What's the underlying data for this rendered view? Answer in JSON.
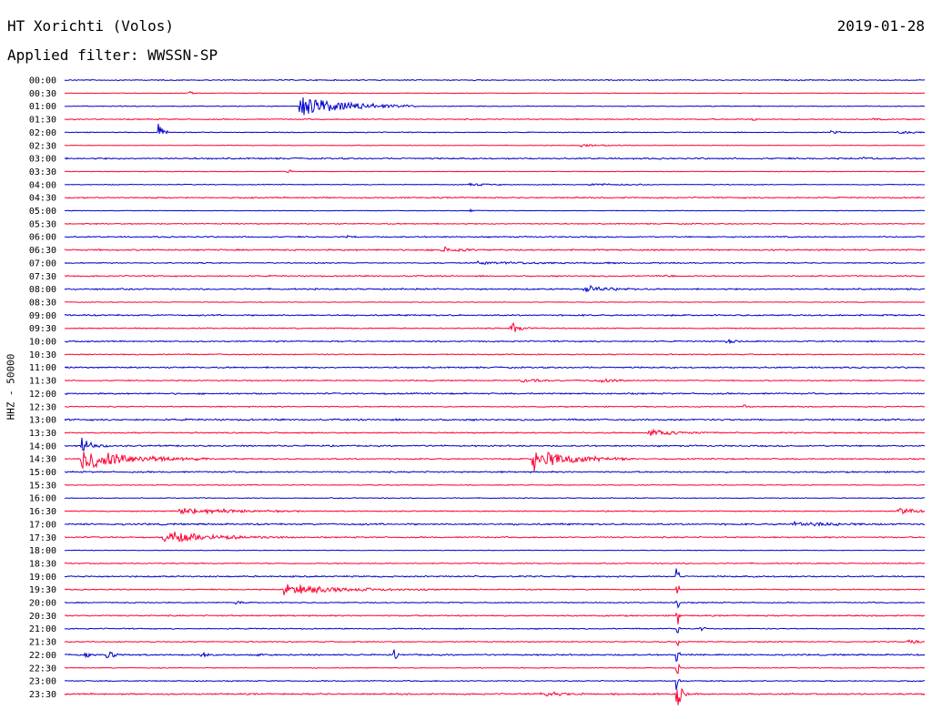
{
  "header": {
    "title": "HT Xorichti (Volos)",
    "date": "2019-01-28",
    "filter": "Applied filter: WWSSN-SP"
  },
  "chart_data": {
    "type": "line",
    "title": "HT Xorichti (Volos)",
    "ylabel": "HHZ - 50000",
    "colors": [
      "#0000cc",
      "#ff0033"
    ],
    "rows": [
      {
        "label": "00:00",
        "noise": 0.5,
        "events": []
      },
      {
        "label": "00:30",
        "noise": 0.3,
        "events": [
          {
            "t": 0.145,
            "amp": 3,
            "dur": 0.003
          }
        ]
      },
      {
        "label": "01:00",
        "noise": 0.4,
        "events": [
          {
            "t": 0.275,
            "amp": 16,
            "dur": 0.045
          }
        ]
      },
      {
        "label": "01:30",
        "noise": 0.5,
        "events": [
          {
            "t": 0.8,
            "amp": 2,
            "dur": 0.005
          },
          {
            "t": 0.94,
            "amp": 2,
            "dur": 0.005
          }
        ]
      },
      {
        "label": "02:00",
        "noise": 0.4,
        "events": [
          {
            "t": 0.11,
            "amp": 16,
            "dur": 0.004
          },
          {
            "t": 0.89,
            "amp": 2,
            "dur": 0.01
          },
          {
            "t": 0.97,
            "amp": 2,
            "dur": 0.02
          }
        ]
      },
      {
        "label": "02:30",
        "noise": 0.3,
        "events": [
          {
            "t": 0.6,
            "amp": 1.5,
            "dur": 0.03
          }
        ]
      },
      {
        "label": "03:00",
        "noise": 0.7,
        "events": [
          {
            "t": 0.93,
            "amp": 2,
            "dur": 0.005
          }
        ]
      },
      {
        "label": "03:30",
        "noise": 0.3,
        "events": [
          {
            "t": 0.26,
            "amp": 4,
            "dur": 0.004
          }
        ]
      },
      {
        "label": "04:00",
        "noise": 0.4,
        "events": [
          {
            "t": 0.47,
            "amp": 1.5,
            "dur": 0.02
          },
          {
            "t": 0.61,
            "amp": 1.5,
            "dur": 0.03
          }
        ]
      },
      {
        "label": "04:30",
        "noise": 0.6,
        "events": []
      },
      {
        "label": "05:00",
        "noise": 0.3,
        "events": [
          {
            "t": 0.47,
            "amp": 2,
            "dur": 0.005
          }
        ]
      },
      {
        "label": "05:30",
        "noise": 0.5,
        "events": []
      },
      {
        "label": "06:00",
        "noise": 0.6,
        "events": [
          {
            "t": 0.33,
            "amp": 1.5,
            "dur": 0.005
          }
        ]
      },
      {
        "label": "06:30",
        "noise": 0.7,
        "events": [
          {
            "t": 0.44,
            "amp": 4,
            "dur": 0.015
          }
        ]
      },
      {
        "label": "07:00",
        "noise": 0.5,
        "events": [
          {
            "t": 0.48,
            "amp": 1.5,
            "dur": 0.1
          }
        ]
      },
      {
        "label": "07:30",
        "noise": 0.6,
        "events": [
          {
            "t": 0.7,
            "amp": 3,
            "dur": 0.004
          }
        ]
      },
      {
        "label": "08:00",
        "noise": 0.7,
        "events": [
          {
            "t": 0.605,
            "amp": 4,
            "dur": 0.025
          }
        ]
      },
      {
        "label": "08:30",
        "noise": 0.3,
        "events": []
      },
      {
        "label": "09:00",
        "noise": 0.7,
        "events": []
      },
      {
        "label": "09:30",
        "noise": 0.5,
        "events": [
          {
            "t": 0.52,
            "amp": 8,
            "dur": 0.01
          }
        ]
      },
      {
        "label": "10:00",
        "noise": 0.6,
        "events": [
          {
            "t": 0.77,
            "amp": 2,
            "dur": 0.01
          }
        ]
      },
      {
        "label": "10:30",
        "noise": 0.5,
        "events": []
      },
      {
        "label": "11:00",
        "noise": 0.7,
        "events": []
      },
      {
        "label": "11:30",
        "noise": 0.5,
        "events": [
          {
            "t": 0.53,
            "amp": 2,
            "dur": 0.03
          },
          {
            "t": 0.62,
            "amp": 3,
            "dur": 0.02
          }
        ]
      },
      {
        "label": "12:00",
        "noise": 0.7,
        "events": []
      },
      {
        "label": "12:30",
        "noise": 0.5,
        "events": [
          {
            "t": 0.79,
            "amp": 3,
            "dur": 0.004
          }
        ]
      },
      {
        "label": "13:00",
        "noise": 0.8,
        "events": []
      },
      {
        "label": "13:30",
        "noise": 0.6,
        "events": [
          {
            "t": 0.68,
            "amp": 4,
            "dur": 0.03
          }
        ]
      },
      {
        "label": "14:00",
        "noise": 0.7,
        "events": [
          {
            "t": 0.02,
            "amp": 14,
            "dur": 0.01
          }
        ]
      },
      {
        "label": "14:30",
        "noise": 0.6,
        "events": [
          {
            "t": 0.02,
            "amp": 16,
            "dur": 0.05
          },
          {
            "t": 0.545,
            "amp": 14,
            "dur": 0.04
          }
        ]
      },
      {
        "label": "15:00",
        "noise": 0.7,
        "events": []
      },
      {
        "label": "15:30",
        "noise": 0.4,
        "events": []
      },
      {
        "label": "16:00",
        "noise": 0.4,
        "events": []
      },
      {
        "label": "16:30",
        "noise": 0.5,
        "events": [
          {
            "t": 0.135,
            "amp": 5,
            "dur": 0.05
          },
          {
            "t": 0.97,
            "amp": 4,
            "dur": 0.02
          }
        ]
      },
      {
        "label": "17:00",
        "noise": 0.8,
        "events": [
          {
            "t": 0.845,
            "amp": 4,
            "dur": 0.03
          }
        ]
      },
      {
        "label": "17:30",
        "noise": 0.6,
        "events": [
          {
            "t": 0.115,
            "amp": 8,
            "dur": 0.05
          }
        ]
      },
      {
        "label": "18:00",
        "noise": 0.3,
        "events": []
      },
      {
        "label": "18:30",
        "noise": 0.5,
        "events": []
      },
      {
        "label": "19:00",
        "noise": 0.7,
        "events": [
          {
            "t": 0.713,
            "amp": 16,
            "dur": 0.001
          }
        ]
      },
      {
        "label": "19:30",
        "noise": 0.5,
        "events": [
          {
            "t": 0.255,
            "amp": 7,
            "dur": 0.06
          },
          {
            "t": 0.713,
            "amp": 16,
            "dur": 0.001
          }
        ]
      },
      {
        "label": "20:00",
        "noise": 0.5,
        "events": [
          {
            "t": 0.2,
            "amp": 3,
            "dur": 0.004
          },
          {
            "t": 0.713,
            "amp": 16,
            "dur": 0.001
          }
        ]
      },
      {
        "label": "20:30",
        "noise": 0.6,
        "events": [
          {
            "t": 0.713,
            "amp": 16,
            "dur": 0.001
          }
        ]
      },
      {
        "label": "21:00",
        "noise": 0.5,
        "events": [
          {
            "t": 0.74,
            "amp": 3,
            "dur": 0.004
          },
          {
            "t": 0.713,
            "amp": 16,
            "dur": 0.001
          }
        ]
      },
      {
        "label": "21:30",
        "noise": 0.5,
        "events": [
          {
            "t": 0.98,
            "amp": 3,
            "dur": 0.01
          },
          {
            "t": 0.713,
            "amp": 16,
            "dur": 0.001
          }
        ]
      },
      {
        "label": "22:00",
        "noise": 0.7,
        "events": [
          {
            "t": 0.025,
            "amp": 4,
            "dur": 0.004
          },
          {
            "t": 0.05,
            "amp": 5,
            "dur": 0.01
          },
          {
            "t": 0.16,
            "amp": 4,
            "dur": 0.004
          },
          {
            "t": 0.225,
            "amp": 3,
            "dur": 0.003
          },
          {
            "t": 0.383,
            "amp": 7,
            "dur": 0.003
          },
          {
            "t": 0.713,
            "amp": 16,
            "dur": 0.001
          }
        ]
      },
      {
        "label": "22:30",
        "noise": 0.4,
        "events": [
          {
            "t": 0.713,
            "amp": 16,
            "dur": 0.001
          }
        ]
      },
      {
        "label": "23:00",
        "noise": 0.5,
        "events": [
          {
            "t": 0.713,
            "amp": 16,
            "dur": 0.001
          }
        ]
      },
      {
        "label": "23:30",
        "noise": 0.7,
        "events": [
          {
            "t": 0.555,
            "amp": 3,
            "dur": 0.02
          },
          {
            "t": 0.713,
            "amp": 18,
            "dur": 0.004
          }
        ]
      }
    ]
  }
}
